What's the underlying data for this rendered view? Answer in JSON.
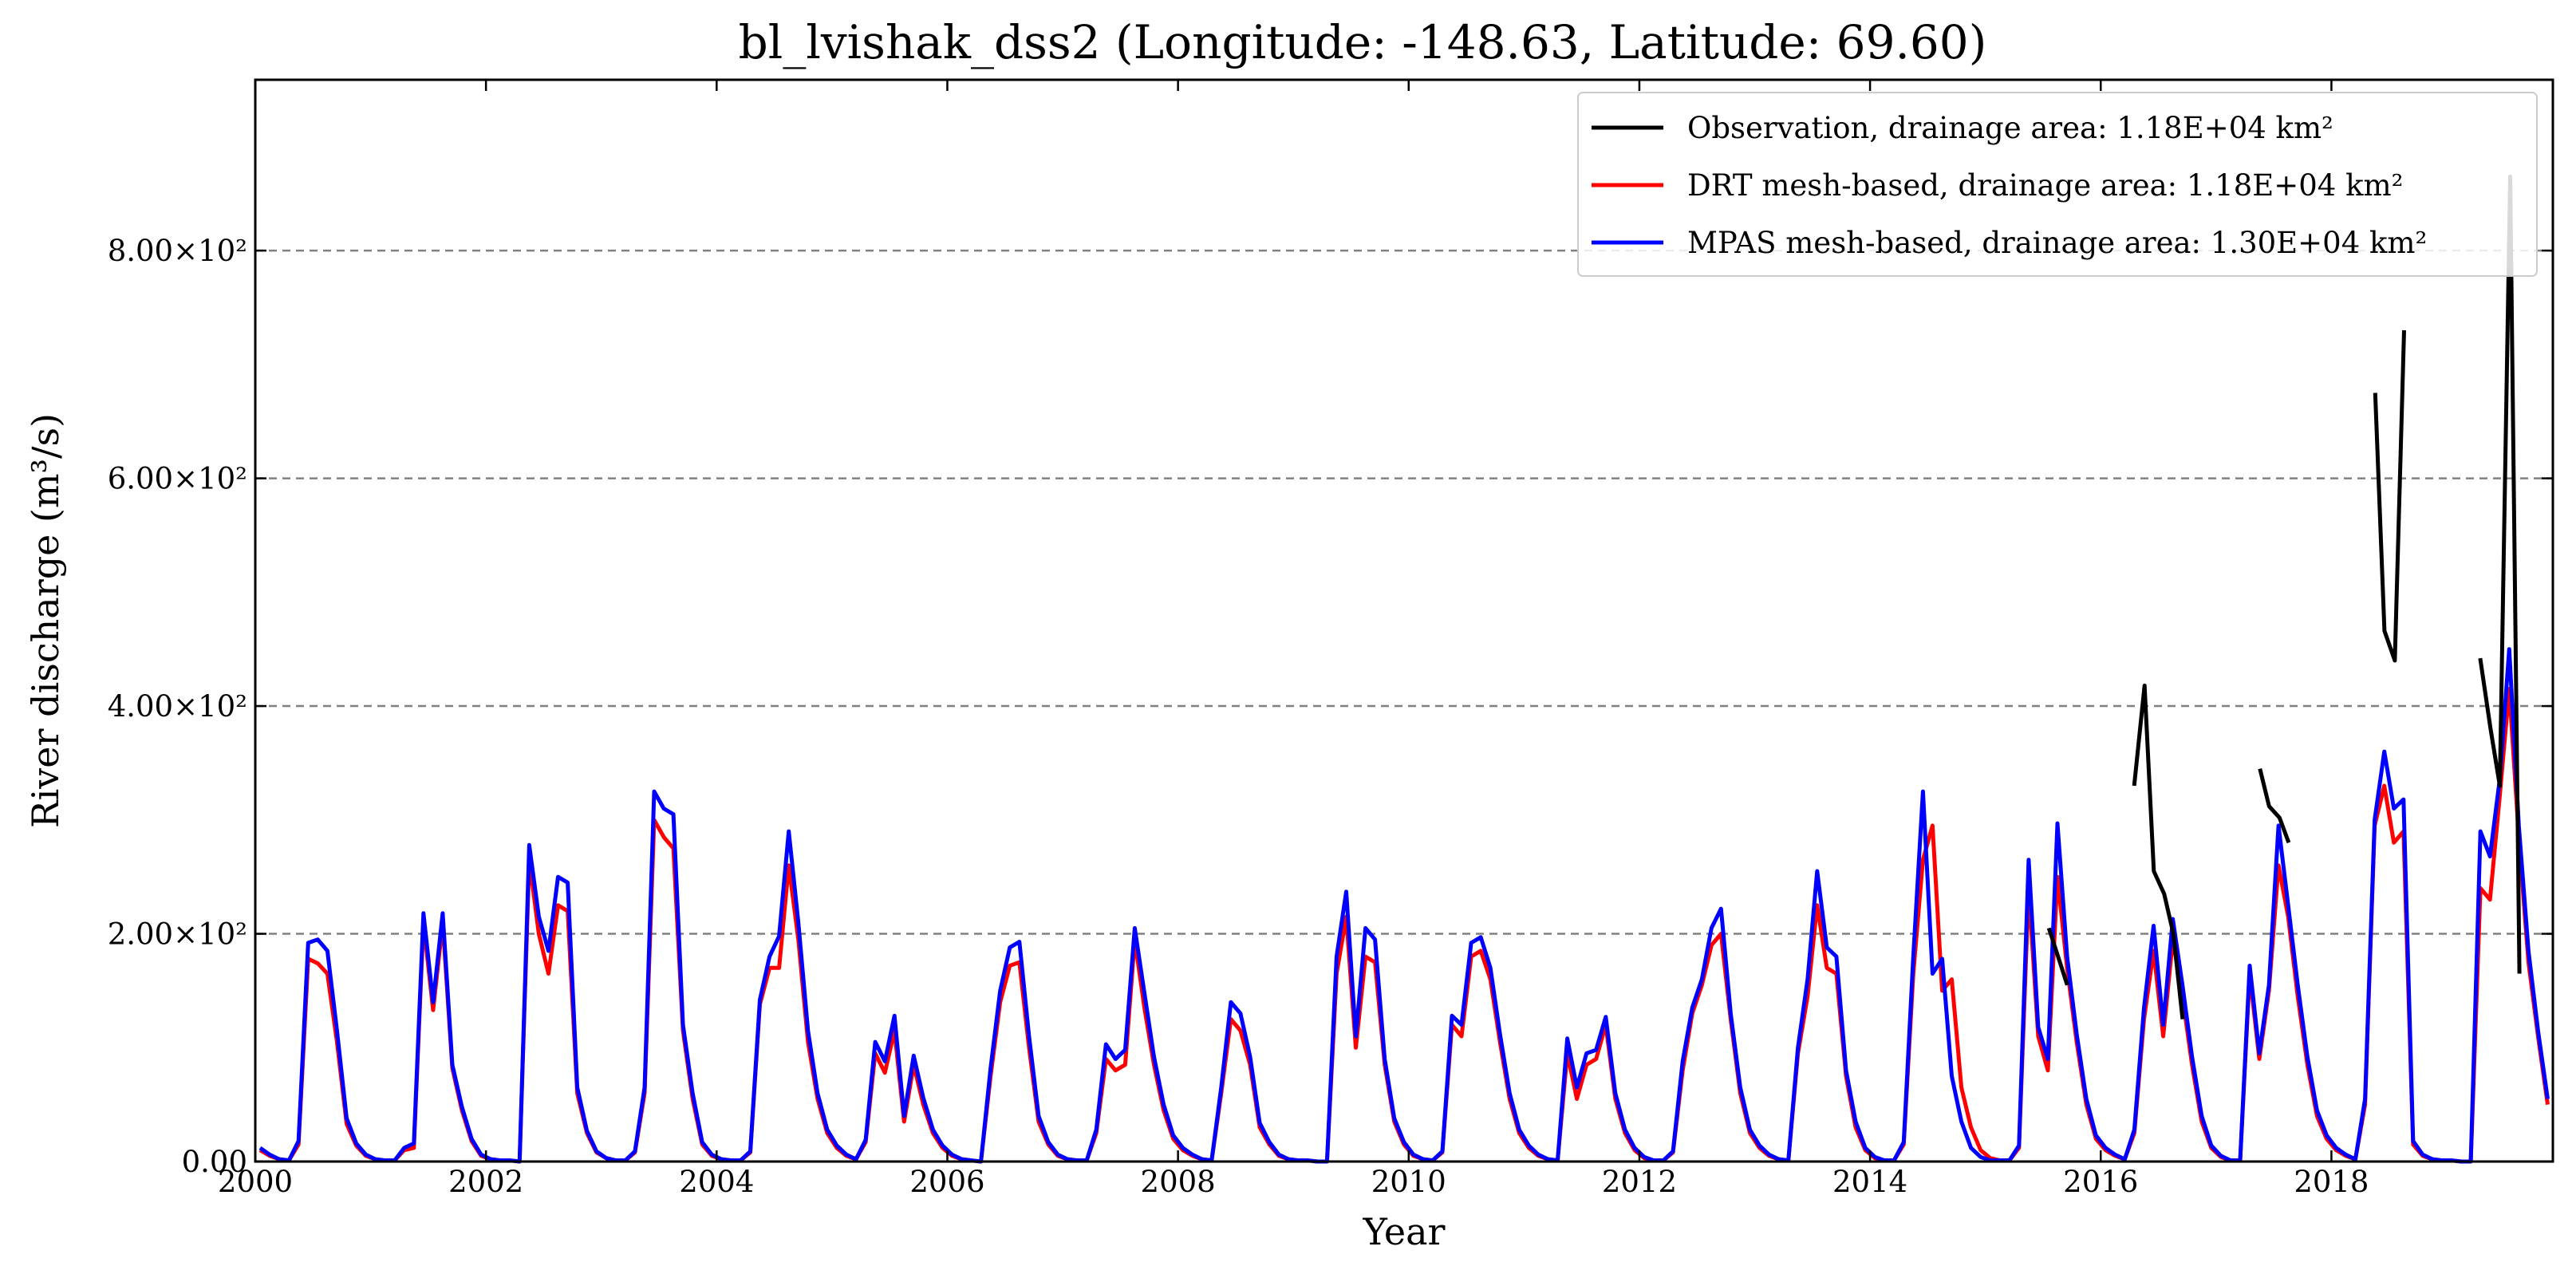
{
  "chart_data": {
    "type": "line",
    "title": "bl_lvishak_dss2 (Longitude: -148.63, Latitude: 69.60)",
    "xlabel": "Year",
    "ylabel": "River discharge (m³/s)",
    "xlim": [
      2000.0,
      2019.92
    ],
    "ylim": [
      0,
      950
    ],
    "x_ticks": [
      2000,
      2002,
      2004,
      2006,
      2008,
      2010,
      2012,
      2014,
      2016,
      2018
    ],
    "x_tick_labels": [
      "2000",
      "2002",
      "2004",
      "2006",
      "2008",
      "2010",
      "2012",
      "2014",
      "2016",
      "2018"
    ],
    "y_ticks": [
      0,
      200,
      400,
      600,
      800
    ],
    "y_tick_labels": [
      "0.00",
      "2.00×10²",
      "4.00×10²",
      "6.00×10²",
      "8.00×10²"
    ],
    "grid": "horizontal dashed",
    "legend_position": "top-right",
    "series": [
      {
        "name": "Observation, drainage area: 1.18E+04 km²",
        "color": "#000000",
        "segments": [
          [
            [
              2015.55,
              205
            ],
            [
              2015.63,
              180
            ],
            [
              2015.71,
              155
            ]
          ],
          [
            [
              2016.29,
              330
            ],
            [
              2016.38,
              418
            ],
            [
              2016.46,
              255
            ],
            [
              2016.55,
              235
            ],
            [
              2016.63,
              200
            ],
            [
              2016.71,
              125
            ]
          ],
          [
            [
              2017.38,
              345
            ],
            [
              2017.46,
              312
            ],
            [
              2017.55,
              302
            ],
            [
              2017.63,
              280
            ]
          ],
          [
            [
              2018.38,
              675
            ],
            [
              2018.46,
              466
            ],
            [
              2018.55,
              440
            ],
            [
              2018.63,
              730
            ]
          ],
          [
            [
              2019.29,
              442
            ],
            [
              2019.38,
              380
            ],
            [
              2019.46,
              330
            ],
            [
              2019.55,
              865
            ],
            [
              2019.63,
              165
            ]
          ]
        ]
      },
      {
        "name": "DRT mesh-based, drainage area: 1.18E+04 km²",
        "color": "#ff0000",
        "values": [
          10,
          5,
          2,
          1,
          15,
          178,
          174,
          165,
          105,
          33,
          14,
          5,
          2,
          1,
          1,
          10,
          12,
          210,
          133,
          210,
          82,
          45,
          18,
          5,
          2,
          1,
          1,
          0,
          265,
          200,
          165,
          225,
          220,
          60,
          25,
          8,
          3,
          1,
          1,
          8,
          60,
          300,
          285,
          275,
          115,
          55,
          15,
          5,
          2,
          1,
          1,
          8,
          138,
          170,
          170,
          260,
          195,
          105,
          55,
          25,
          12,
          5,
          2,
          17,
          95,
          78,
          115,
          35,
          85,
          50,
          25,
          12,
          5,
          2,
          1,
          0,
          75,
          140,
          172,
          175,
          100,
          35,
          15,
          5,
          2,
          1,
          1,
          25,
          90,
          80,
          85,
          195,
          135,
          85,
          45,
          20,
          10,
          5,
          2,
          1,
          60,
          125,
          115,
          85,
          30,
          15,
          5,
          2,
          1,
          1,
          0,
          0,
          165,
          215,
          100,
          180,
          175,
          85,
          35,
          15,
          5,
          2,
          1,
          8,
          120,
          110,
          180,
          185,
          160,
          105,
          55,
          25,
          12,
          5,
          2,
          1,
          95,
          55,
          85,
          90,
          120,
          55,
          25,
          10,
          3,
          1,
          1,
          8,
          80,
          130,
          155,
          190,
          200,
          125,
          60,
          25,
          12,
          5,
          2,
          1,
          95,
          145,
          225,
          170,
          165,
          75,
          30,
          10,
          3,
          1,
          1,
          15,
          165,
          265,
          295,
          150,
          160,
          65,
          30,
          10,
          3,
          1,
          1,
          12,
          240,
          110,
          80,
          250,
          170,
          105,
          50,
          20,
          10,
          5,
          2,
          25,
          125,
          185,
          110,
          195,
          145,
          85,
          35,
          12,
          4,
          1,
          1,
          165,
          90,
          150,
          260,
          215,
          145,
          85,
          40,
          20,
          10,
          5,
          2,
          50,
          295,
          330,
          280,
          290,
          15,
          5,
          2,
          1,
          1,
          0,
          0,
          240,
          230,
          320,
          415,
          285,
          175,
          110,
          50
        ]
      },
      {
        "name": "MPAS mesh-based, drainage area: 1.30E+04 km²",
        "color": "#0000ff",
        "values": [
          12,
          6,
          2,
          1,
          18,
          192,
          195,
          185,
          115,
          38,
          16,
          6,
          2,
          1,
          1,
          12,
          16,
          218,
          140,
          218,
          85,
          48,
          20,
          6,
          2,
          1,
          1,
          0,
          278,
          215,
          185,
          250,
          245,
          65,
          27,
          9,
          3,
          1,
          1,
          9,
          65,
          325,
          310,
          305,
          120,
          60,
          17,
          6,
          2,
          1,
          1,
          9,
          142,
          180,
          198,
          290,
          210,
          115,
          60,
          28,
          14,
          6,
          2,
          19,
          105,
          88,
          128,
          40,
          93,
          56,
          28,
          14,
          6,
          2,
          1,
          0,
          82,
          150,
          188,
          193,
          110,
          40,
          17,
          6,
          2,
          1,
          1,
          28,
          103,
          90,
          98,
          205,
          148,
          92,
          50,
          23,
          12,
          6,
          2,
          1,
          65,
          140,
          130,
          92,
          34,
          17,
          6,
          2,
          1,
          1,
          0,
          0,
          180,
          237,
          110,
          205,
          195,
          90,
          38,
          17,
          6,
          2,
          1,
          9,
          128,
          120,
          192,
          197,
          170,
          112,
          60,
          28,
          14,
          6,
          2,
          1,
          108,
          65,
          95,
          98,
          127,
          60,
          28,
          12,
          4,
          1,
          1,
          9,
          88,
          135,
          160,
          205,
          222,
          130,
          65,
          28,
          14,
          6,
          2,
          1,
          100,
          160,
          255,
          188,
          180,
          80,
          35,
          12,
          4,
          1,
          1,
          17,
          180,
          325,
          165,
          178,
          75,
          35,
          12,
          4,
          1,
          1,
          1,
          14,
          265,
          118,
          90,
          297,
          180,
          112,
          55,
          23,
          12,
          6,
          2,
          28,
          135,
          207,
          120,
          213,
          155,
          92,
          40,
          14,
          5,
          1,
          1,
          172,
          95,
          155,
          295,
          225,
          155,
          92,
          45,
          23,
          12,
          6,
          2,
          55,
          300,
          360,
          310,
          318,
          18,
          6,
          2,
          1,
          1,
          0,
          0,
          290,
          268,
          335,
          450,
          295,
          185,
          115,
          55
        ]
      }
    ]
  }
}
